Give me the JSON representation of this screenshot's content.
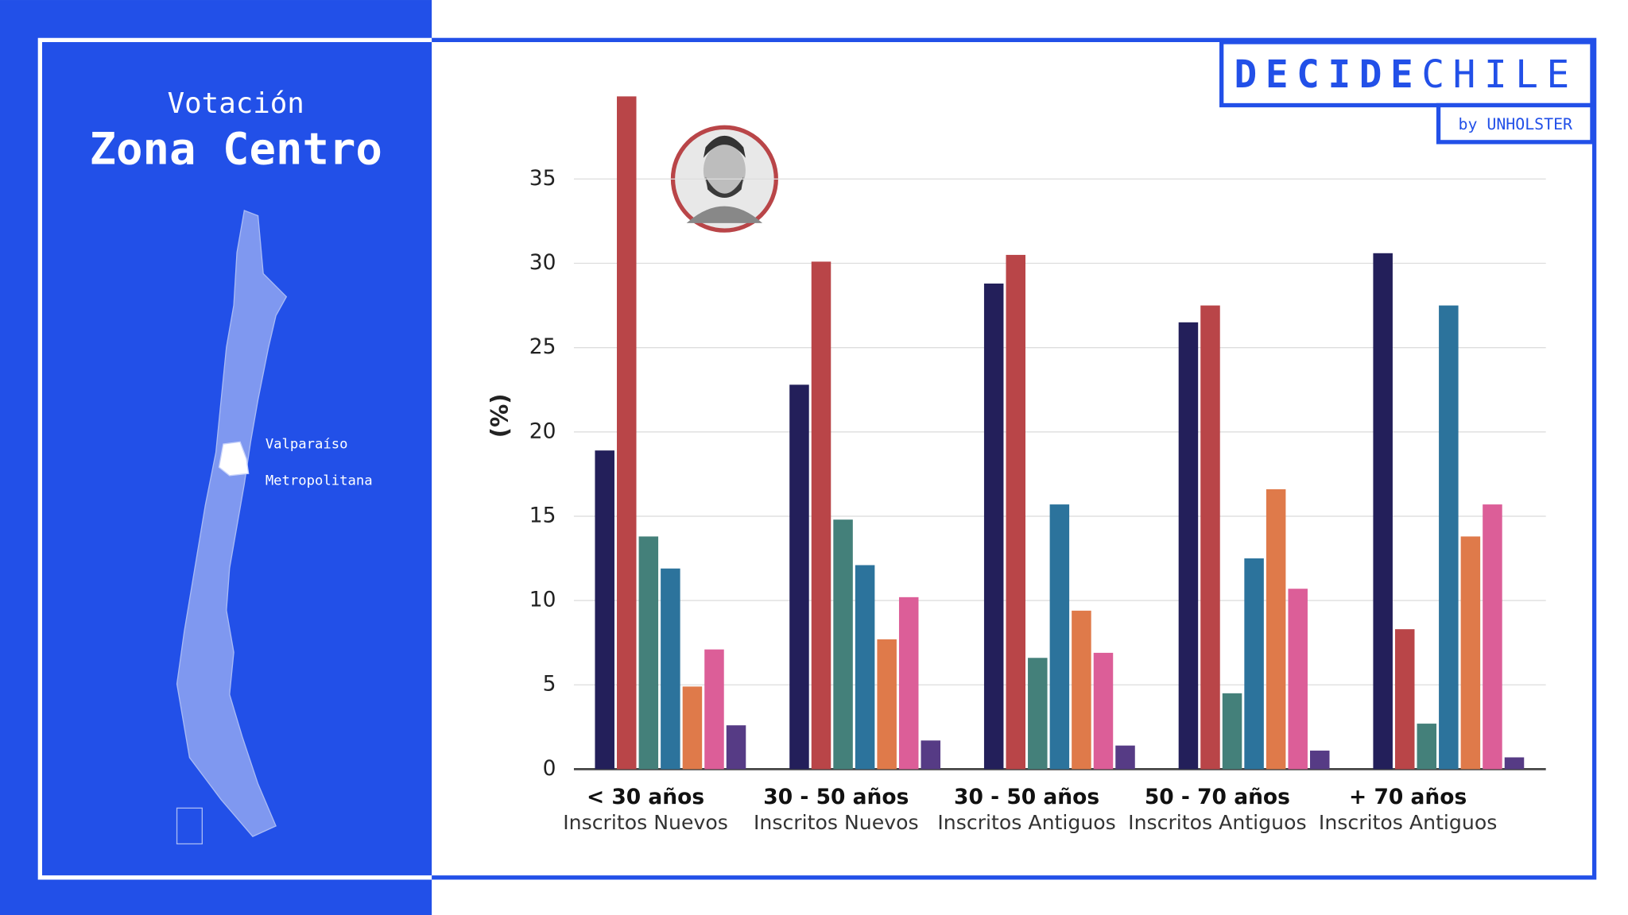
{
  "panel": {
    "title_small": "Votación",
    "title": "Zona Centro",
    "regions": [
      "Valparaíso",
      "Metropolitana"
    ]
  },
  "logo": {
    "brand_bold": "DECIDE",
    "brand_light": "CHILE",
    "by": "by UNHOLSTER"
  },
  "chart_data": {
    "type": "bar",
    "categories": [
      "< 30 años",
      "30 - 50 años",
      "30 - 50 años",
      "50 - 70 años",
      "+ 70 años"
    ],
    "category_subtitles": [
      "Inscritos Nuevos",
      "Inscritos Nuevos",
      "Inscritos Antiguos",
      "Inscritos Antiguos",
      "Inscritos Antiguos"
    ],
    "y_label": "(%)",
    "series": [
      {
        "color": "#231f5a",
        "values": [
          18.9,
          22.8,
          28.8,
          26.5,
          30.6
        ]
      },
      {
        "color": "#b94548",
        "values": [
          39.9,
          30.1,
          30.5,
          27.5,
          8.3
        ]
      },
      {
        "color": "#44807a",
        "values": [
          13.8,
          14.8,
          6.6,
          4.5,
          2.7
        ]
      },
      {
        "color": "#2c739c",
        "values": [
          11.9,
          12.1,
          15.7,
          12.5,
          27.5
        ]
      },
      {
        "color": "#df7a4a",
        "values": [
          4.9,
          7.7,
          9.4,
          16.6,
          13.8
        ]
      },
      {
        "color": "#dc5e98",
        "values": [
          7.1,
          10.2,
          6.9,
          10.7,
          15.7
        ]
      },
      {
        "color": "#563b85",
        "values": [
          2.6,
          1.7,
          1.4,
          1.1,
          0.7
        ]
      }
    ],
    "ylim": [
      0,
      40
    ],
    "yticks": [
      0,
      5,
      10,
      15,
      20,
      25,
      30,
      35
    ],
    "grid": true
  }
}
